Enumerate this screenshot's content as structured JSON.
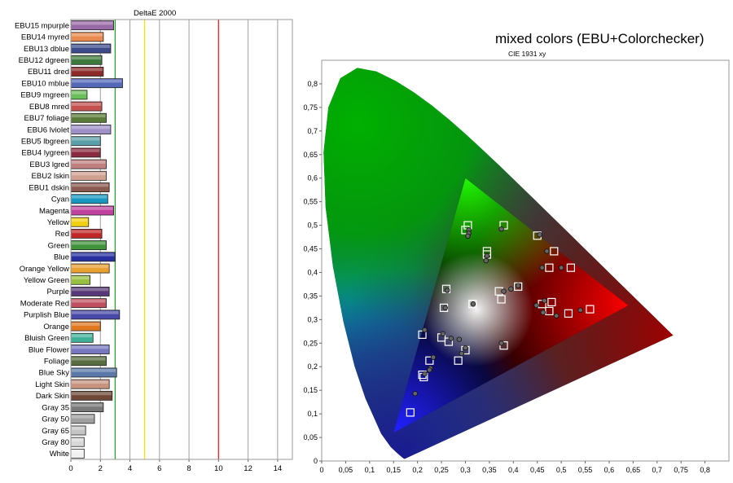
{
  "chart_data": [
    {
      "type": "bar",
      "orientation": "horizontal",
      "title": "DeltaE 2000",
      "xlim": [
        0,
        15
      ],
      "x_ticks": [
        "0",
        "2",
        "4",
        "6",
        "8",
        "10",
        "12",
        "14"
      ],
      "reference_lines": [
        {
          "value": 3,
          "color": "#2ca02c"
        },
        {
          "value": 5,
          "color": "#ffe100"
        },
        {
          "value": 10,
          "color": "#ff2020"
        }
      ],
      "categories": [
        "EBU15 mpurple",
        "EBU14 myred",
        "EBU13 dblue",
        "EBU12 dgreen",
        "EBU11 dred",
        "EBU10 mblue",
        "EBU9 mgreen",
        "EBU8 mred",
        "EBU7 foliage",
        "EBU6 lviolet",
        "EBU5 lbgreen",
        "EBU4 lygreen",
        "EBU3 lgred",
        "EBU2 lskin",
        "EBU1 dskin",
        "Cyan",
        "Magenta",
        "Yellow",
        "Red",
        "Green",
        "Blue",
        "Orange Yellow",
        "Yellow Green",
        "Purple",
        "Moderate Red",
        "Purplish Blue",
        "Orange",
        "Bluish Green",
        "Blue Flower",
        "Foliage",
        "Blue Sky",
        "Light Skin",
        "Dark Skin",
        "Gray 35",
        "Gray 50",
        "Gray 65",
        "Gray 80",
        "White"
      ],
      "values": [
        2.9,
        2.2,
        2.7,
        2.1,
        2.2,
        3.5,
        1.1,
        2.1,
        2.4,
        2.7,
        2.0,
        2.0,
        2.4,
        2.4,
        2.6,
        2.5,
        2.9,
        1.2,
        2.1,
        2.4,
        3.0,
        2.6,
        1.3,
        2.6,
        2.4,
        3.3,
        2.0,
        1.5,
        2.6,
        2.4,
        3.1,
        2.6,
        2.8,
        2.2,
        1.6,
        1.0,
        0.9,
        0.9
      ],
      "bar_colors": [
        "#9a6aa8",
        "#e8894e",
        "#3c4a8a",
        "#3e7a3e",
        "#8c2a2a",
        "#5468b8",
        "#6abf5a",
        "#c45050",
        "#5a7a3a",
        "#a090c8",
        "#5aa0a8",
        "#8a2a40",
        "#c08080",
        "#d0a090",
        "#8a5a50",
        "#1898c0",
        "#c040a0",
        "#f0d010",
        "#c02828",
        "#40943c",
        "#2830a0",
        "#e8a030",
        "#98c040",
        "#583878",
        "#c05060",
        "#4848a8",
        "#e07820",
        "#40b098",
        "#7878c0",
        "#586e40",
        "#5a78a8",
        "#c89480",
        "#704838",
        "#787878",
        "#a0a0a0",
        "#c4c4c4",
        "#d8d8d8",
        "#f0f0f0"
      ]
    },
    {
      "type": "scatter",
      "title": "mixed colors (EBU+Colorchecker)",
      "subtitle": "CIE 1931 xy",
      "xlim": [
        0,
        0.85
      ],
      "ylim": [
        0,
        0.85
      ],
      "x_ticks": [
        "0",
        "0,05",
        "0,1",
        "0,15",
        "0,2",
        "0,25",
        "0,3",
        "0,35",
        "0,4",
        "0,45",
        "0,5",
        "0,55",
        "0,6",
        "0,65",
        "0,7",
        "0,75",
        "0,8"
      ],
      "y_ticks": [
        "0",
        "0,05",
        "0,1",
        "0,15",
        "0,2",
        "0,25",
        "0,3",
        "0,35",
        "0,4",
        "0,45",
        "0,5",
        "0,55",
        "0,6",
        "0,65",
        "0,7",
        "0,75",
        "0,8"
      ],
      "gamut_triangle": [
        [
          0.64,
          0.33
        ],
        [
          0.3,
          0.6
        ],
        [
          0.15,
          0.06
        ]
      ],
      "series": [
        {
          "marker": "square",
          "points": [
            [
              0.305,
              0.5
            ],
            [
              0.38,
              0.5
            ],
            [
              0.3,
              0.49
            ],
            [
              0.345,
              0.445
            ],
            [
              0.345,
              0.438
            ],
            [
              0.45,
              0.478
            ],
            [
              0.485,
              0.445
            ],
            [
              0.475,
              0.41
            ],
            [
              0.52,
              0.41
            ],
            [
              0.41,
              0.37
            ],
            [
              0.37,
              0.36
            ],
            [
              0.375,
              0.343
            ],
            [
              0.26,
              0.365
            ],
            [
              0.255,
              0.325
            ],
            [
              0.315,
              0.333
            ],
            [
              0.46,
              0.333
            ],
            [
              0.48,
              0.337
            ],
            [
              0.475,
              0.318
            ],
            [
              0.515,
              0.313
            ],
            [
              0.56,
              0.322
            ],
            [
              0.21,
              0.268
            ],
            [
              0.25,
              0.262
            ],
            [
              0.265,
              0.253
            ],
            [
              0.3,
              0.235
            ],
            [
              0.285,
              0.213
            ],
            [
              0.225,
              0.213
            ],
            [
              0.21,
              0.183
            ],
            [
              0.213,
              0.178
            ],
            [
              0.185,
              0.103
            ],
            [
              0.38,
              0.245
            ]
          ]
        },
        {
          "marker": "circle",
          "points": [
            [
              0.307,
              0.49
            ],
            [
              0.307,
              0.483
            ],
            [
              0.305,
              0.477
            ],
            [
              0.375,
              0.492
            ],
            [
              0.345,
              0.435
            ],
            [
              0.343,
              0.425
            ],
            [
              0.455,
              0.48
            ],
            [
              0.47,
              0.445
            ],
            [
              0.46,
              0.41
            ],
            [
              0.5,
              0.41
            ],
            [
              0.395,
              0.365
            ],
            [
              0.38,
              0.36
            ],
            [
              0.41,
              0.372
            ],
            [
              0.262,
              0.362
            ],
            [
              0.258,
              0.325
            ],
            [
              0.316,
              0.333
            ],
            [
              0.448,
              0.33
            ],
            [
              0.465,
              0.34
            ],
            [
              0.462,
              0.315
            ],
            [
              0.49,
              0.308
            ],
            [
              0.54,
              0.32
            ],
            [
              0.215,
              0.278
            ],
            [
              0.253,
              0.27
            ],
            [
              0.27,
              0.26
            ],
            [
              0.287,
              0.258
            ],
            [
              0.3,
              0.24
            ],
            [
              0.292,
              0.228
            ],
            [
              0.233,
              0.22
            ],
            [
              0.227,
              0.197
            ],
            [
              0.225,
              0.193
            ],
            [
              0.215,
              0.185
            ],
            [
              0.195,
              0.143
            ],
            [
              0.375,
              0.25
            ]
          ]
        }
      ]
    }
  ]
}
